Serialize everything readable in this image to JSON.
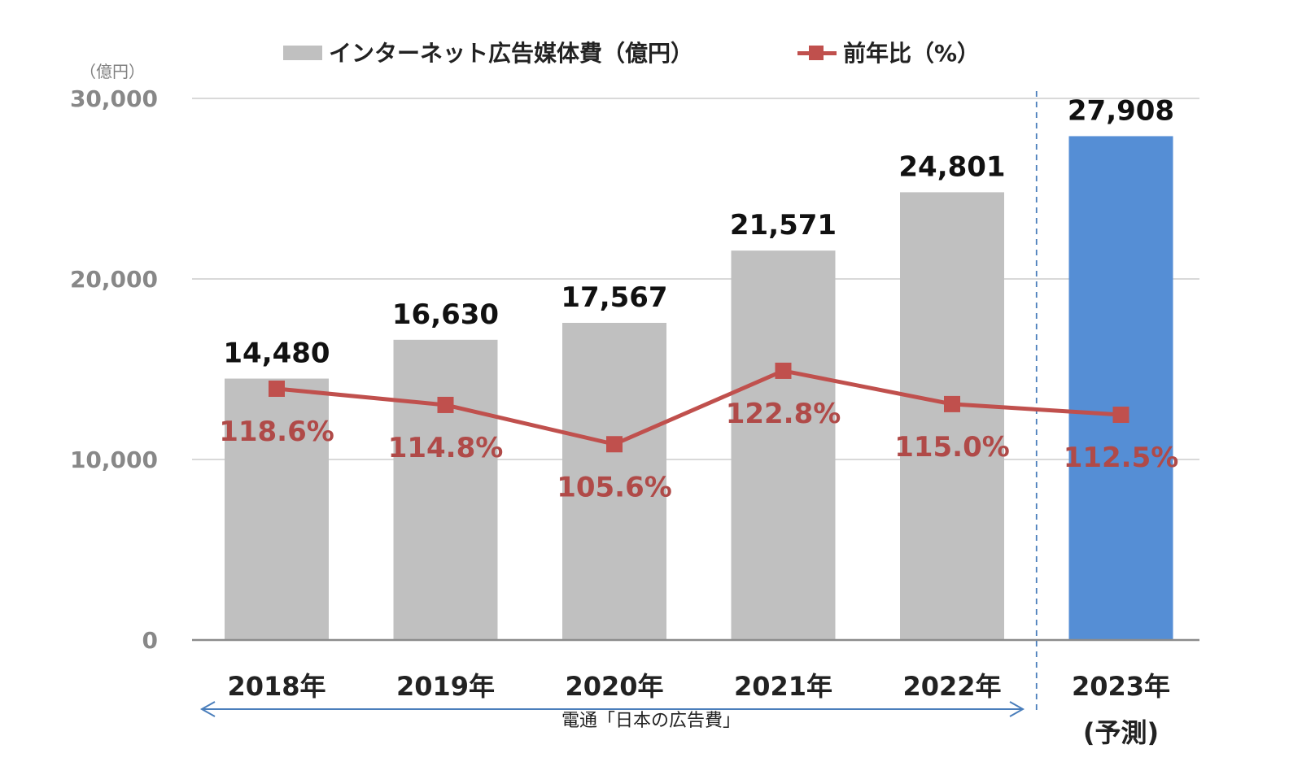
{
  "legend": {
    "bar_label": "インターネット広告媒体費（億円）",
    "line_label": "前年比（%）"
  },
  "unit_label": "（億円）",
  "source_note": "電通「日本の広告費」",
  "forecast_label": "(予測)",
  "colors": {
    "bar": "#c0c0c0",
    "bar_forecast": "#558ed5",
    "line": "#c0504d",
    "grid": "#d9d9d9",
    "arrow": "#4a7ebb"
  },
  "chart_data": {
    "type": "bar",
    "categories": [
      "2018年",
      "2019年",
      "2020年",
      "2021年",
      "2022年",
      "2023年"
    ],
    "series": [
      {
        "name": "インターネット広告媒体費（億円）",
        "type": "bar",
        "values": [
          14480,
          16630,
          17567,
          21571,
          24801,
          27908
        ],
        "labels": [
          "14,480",
          "16,630",
          "17,567",
          "21,571",
          "24,801",
          "27,908"
        ]
      },
      {
        "name": "前年比（%）",
        "type": "line",
        "values": [
          118.6,
          114.8,
          105.6,
          122.8,
          115.0,
          112.5
        ],
        "labels": [
          "118.6%",
          "114.8%",
          "105.6%",
          "122.8%",
          "115.0%",
          "112.5%"
        ]
      }
    ],
    "forecast_index": 5,
    "ylim": [
      0,
      30000
    ],
    "yticks": [
      "0",
      "10,000",
      "20,000",
      "30,000"
    ],
    "ytick_values": [
      0,
      10000,
      20000,
      30000
    ],
    "grid": true,
    "legend_position": "top"
  }
}
